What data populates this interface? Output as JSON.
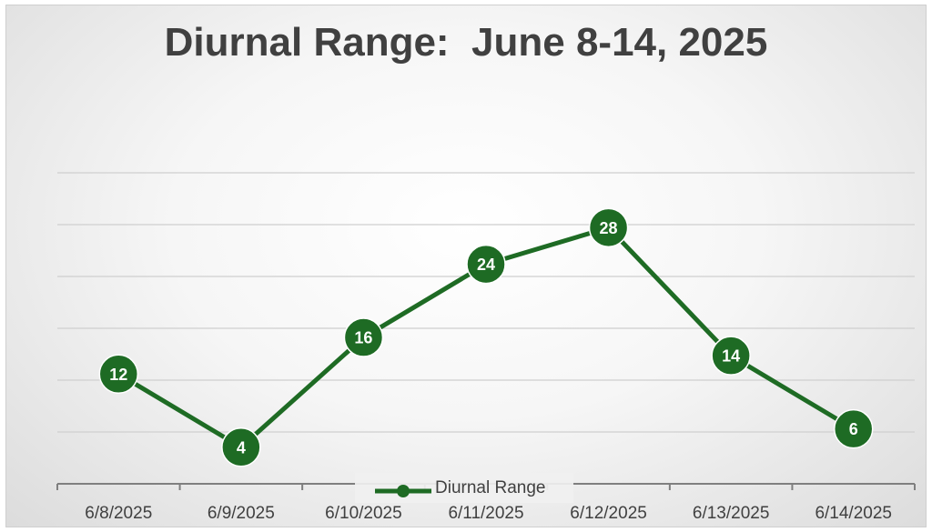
{
  "chart_data": {
    "type": "line",
    "title": "Diurnal Range:  June 8-14, 2025",
    "categories": [
      "6/8/2025",
      "6/9/2025",
      "6/10/2025",
      "6/11/2025",
      "6/12/2025",
      "6/13/2025",
      "6/14/2025"
    ],
    "series": [
      {
        "name": "Diurnal Range",
        "values": [
          12,
          4,
          16,
          24,
          28,
          14,
          6
        ]
      }
    ],
    "ylim": [
      0,
      34
    ],
    "grid": true,
    "data_labels": true,
    "legend_position": "bottom",
    "line_color": "#1e6b24",
    "marker_color": "#1e6b24"
  }
}
